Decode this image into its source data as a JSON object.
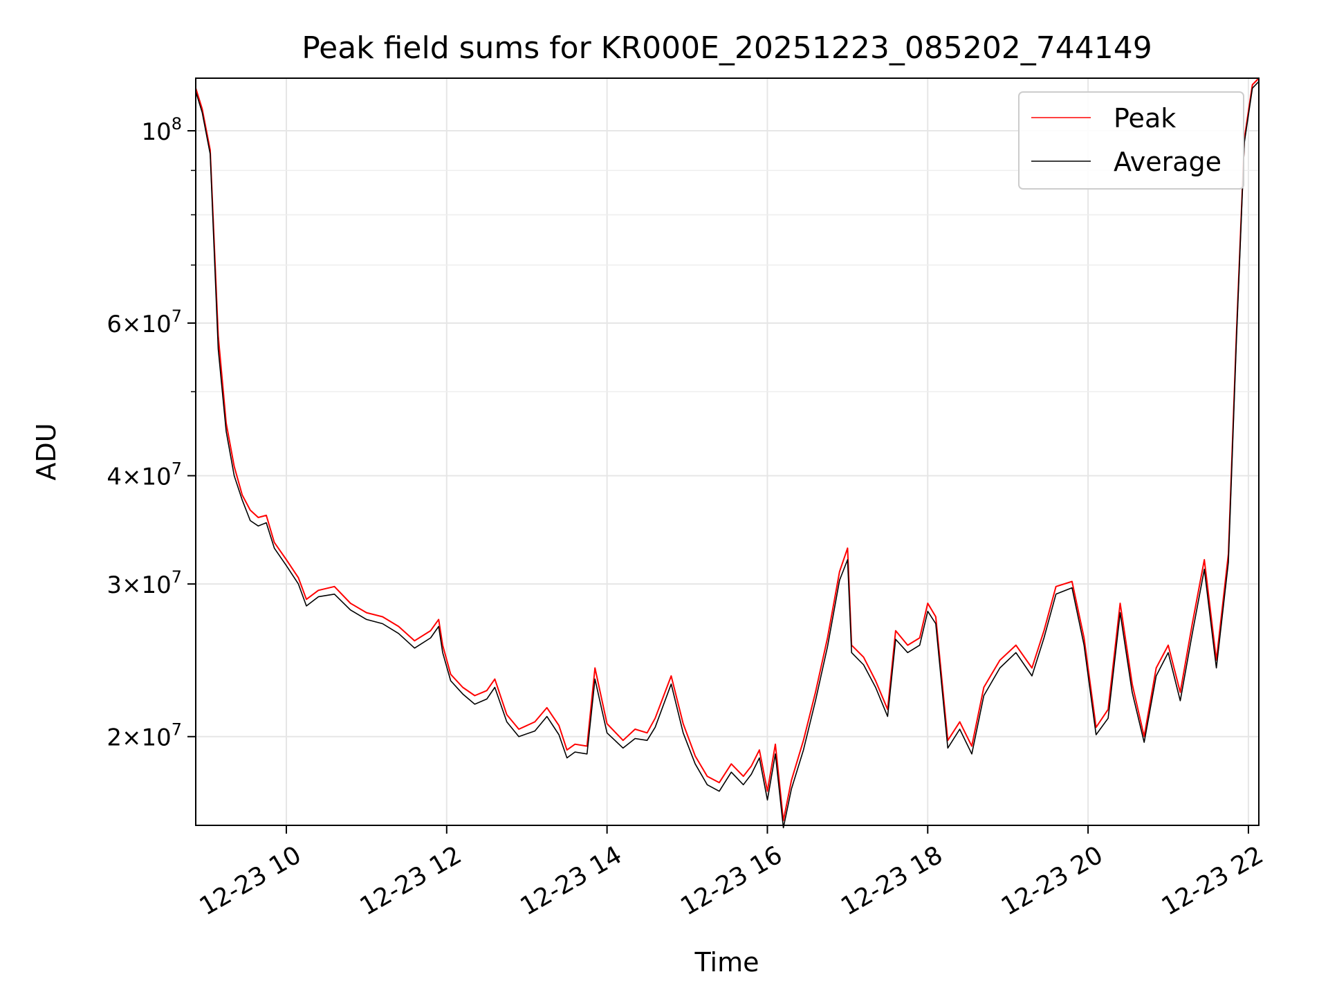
{
  "chart_data": {
    "type": "line",
    "title": "Peak field sums for KR000E_20251223_085202_744149",
    "xlabel": "Time",
    "ylabel": "ADU",
    "yscale": "log",
    "ylim": [
      15800000,
      115000000
    ],
    "xlim": [
      8.87,
      22.13
    ],
    "grid": true,
    "legend_position": "top-right",
    "x_ticks": [
      {
        "value": 10,
        "label": "12-23 10"
      },
      {
        "value": 12,
        "label": "12-23 12"
      },
      {
        "value": 14,
        "label": "12-23 14"
      },
      {
        "value": 16,
        "label": "12-23 16"
      },
      {
        "value": 18,
        "label": "12-23 18"
      },
      {
        "value": 20,
        "label": "12-23 20"
      },
      {
        "value": 22,
        "label": "12-23 22"
      }
    ],
    "y_ticks": [
      {
        "value": 20000000,
        "mantissa": "2",
        "exp": "7"
      },
      {
        "value": 30000000,
        "mantissa": "3",
        "exp": "7"
      },
      {
        "value": 40000000,
        "mantissa": "4",
        "exp": "7"
      },
      {
        "value": 60000000,
        "mantissa": "6",
        "exp": "7"
      },
      {
        "value": 100000000,
        "mantissa": "",
        "exp": "8"
      }
    ],
    "y_minor_ticks": [
      50000000,
      70000000,
      80000000,
      90000000
    ],
    "series": [
      {
        "name": "Peak",
        "color": "#ff0000",
        "x": [
          8.87,
          8.95,
          9.05,
          9.15,
          9.25,
          9.35,
          9.45,
          9.55,
          9.65,
          9.75,
          9.85,
          10.0,
          10.15,
          10.25,
          10.4,
          10.6,
          10.8,
          11.0,
          11.2,
          11.4,
          11.6,
          11.8,
          11.9,
          11.95,
          12.05,
          12.2,
          12.35,
          12.5,
          12.6,
          12.75,
          12.9,
          13.1,
          13.25,
          13.4,
          13.5,
          13.6,
          13.75,
          13.85,
          14.0,
          14.2,
          14.35,
          14.5,
          14.6,
          14.8,
          14.95,
          15.1,
          15.25,
          15.4,
          15.55,
          15.7,
          15.8,
          15.9,
          16.0,
          16.1,
          16.2,
          16.3,
          16.45,
          16.6,
          16.75,
          16.9,
          17.0,
          17.05,
          17.2,
          17.35,
          17.5,
          17.6,
          17.75,
          17.9,
          18.0,
          18.1,
          18.25,
          18.4,
          18.55,
          18.7,
          18.9,
          19.1,
          19.3,
          19.45,
          19.6,
          19.8,
          19.95,
          20.1,
          20.25,
          20.4,
          20.55,
          20.7,
          20.85,
          21.0,
          21.15,
          21.3,
          21.45,
          21.6,
          21.75,
          21.85,
          21.95,
          22.05,
          22.13
        ],
        "y": [
          112000000,
          106000000,
          95000000,
          58000000,
          46000000,
          41000000,
          38000000,
          36500000,
          35800000,
          36000000,
          33500000,
          32000000,
          30500000,
          28800000,
          29500000,
          29800000,
          28500000,
          27800000,
          27500000,
          26800000,
          25800000,
          26500000,
          27300000,
          25500000,
          23600000,
          22800000,
          22300000,
          22600000,
          23300000,
          21200000,
          20400000,
          20800000,
          21600000,
          20600000,
          19300000,
          19600000,
          19500000,
          24000000,
          20700000,
          19800000,
          20400000,
          20200000,
          21000000,
          23500000,
          20700000,
          19000000,
          18000000,
          17700000,
          18600000,
          18000000,
          18500000,
          19300000,
          17300000,
          19600000,
          16000000,
          17800000,
          19800000,
          22500000,
          26000000,
          31000000,
          33000000,
          25500000,
          24700000,
          23200000,
          21500000,
          26500000,
          25500000,
          26000000,
          28500000,
          27500000,
          19800000,
          20800000,
          19500000,
          22800000,
          24500000,
          25500000,
          24000000,
          26500000,
          29800000,
          30200000,
          26000000,
          20500000,
          21500000,
          28500000,
          23000000,
          20000000,
          24000000,
          25500000,
          22500000,
          27000000,
          32000000,
          24500000,
          32500000,
          58000000,
          98000000,
          113000000,
          115000000
        ]
      },
      {
        "name": "Average",
        "color": "#000000",
        "x": [
          8.87,
          8.95,
          9.05,
          9.15,
          9.25,
          9.35,
          9.45,
          9.55,
          9.65,
          9.75,
          9.85,
          10.0,
          10.15,
          10.25,
          10.4,
          10.6,
          10.8,
          11.0,
          11.2,
          11.4,
          11.6,
          11.8,
          11.9,
          11.95,
          12.05,
          12.2,
          12.35,
          12.5,
          12.6,
          12.75,
          12.9,
          13.1,
          13.25,
          13.4,
          13.5,
          13.6,
          13.75,
          13.85,
          14.0,
          14.2,
          14.35,
          14.5,
          14.6,
          14.8,
          14.95,
          15.1,
          15.25,
          15.4,
          15.55,
          15.7,
          15.8,
          15.9,
          16.0,
          16.1,
          16.2,
          16.3,
          16.45,
          16.6,
          16.75,
          16.9,
          17.0,
          17.05,
          17.2,
          17.35,
          17.5,
          17.6,
          17.75,
          17.9,
          18.0,
          18.1,
          18.25,
          18.4,
          18.55,
          18.7,
          18.9,
          19.1,
          19.3,
          19.45,
          19.6,
          19.8,
          19.95,
          20.1,
          20.25,
          20.4,
          20.55,
          20.7,
          20.85,
          21.0,
          21.15,
          21.3,
          21.45,
          21.6,
          21.75,
          21.85,
          21.95,
          22.05,
          22.13
        ],
        "y": [
          111000000,
          105000000,
          94000000,
          56000000,
          45000000,
          40000000,
          37500000,
          35500000,
          35000000,
          35300000,
          33000000,
          31500000,
          30000000,
          28300000,
          29000000,
          29200000,
          28000000,
          27300000,
          27000000,
          26300000,
          25300000,
          26000000,
          26800000,
          25000000,
          23200000,
          22400000,
          21800000,
          22100000,
          22800000,
          20800000,
          20000000,
          20300000,
          21100000,
          20100000,
          18900000,
          19200000,
          19100000,
          23300000,
          20200000,
          19400000,
          19900000,
          19800000,
          20500000,
          23000000,
          20200000,
          18600000,
          17600000,
          17300000,
          18200000,
          17600000,
          18100000,
          18900000,
          16900000,
          19100000,
          15700000,
          17400000,
          19300000,
          22000000,
          25400000,
          30300000,
          32000000,
          25000000,
          24200000,
          22800000,
          21100000,
          25900000,
          25000000,
          25500000,
          27900000,
          27000000,
          19400000,
          20400000,
          19100000,
          22300000,
          24000000,
          25000000,
          23500000,
          26000000,
          29200000,
          29700000,
          25500000,
          20100000,
          21000000,
          27800000,
          22500000,
          19700000,
          23500000,
          25000000,
          22000000,
          26300000,
          31200000,
          24000000,
          31800000,
          57000000,
          97000000,
          112000000,
          114000000
        ]
      }
    ]
  }
}
